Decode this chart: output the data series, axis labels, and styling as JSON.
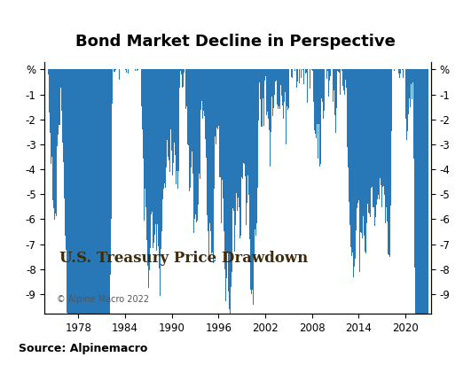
{
  "title": "Bond Market Decline in Perspective",
  "inner_label": "U.S. Treasury Price Drawdown",
  "copyright": "© Alpine Macro 2022",
  "source": "Source: Alpinemacro",
  "ylim": [
    -9.8,
    0.3
  ],
  "yticks": [
    0,
    -1,
    -2,
    -3,
    -4,
    -5,
    -6,
    -7,
    -8,
    -9
  ],
  "yticklabels": [
    "%",
    "-1",
    "-2",
    "-3",
    "-4",
    "-5",
    "-6",
    "-7",
    "-8",
    "-9"
  ],
  "start_year": 1974,
  "end_year": 2022,
  "xtick_years": [
    1978,
    1984,
    1990,
    1996,
    2002,
    2008,
    2014,
    2020
  ],
  "bar_color": "#2878b8",
  "bg_color": "#ffffff",
  "title_fontsize": 13,
  "inner_fontsize": 12,
  "source_fontsize": 9
}
